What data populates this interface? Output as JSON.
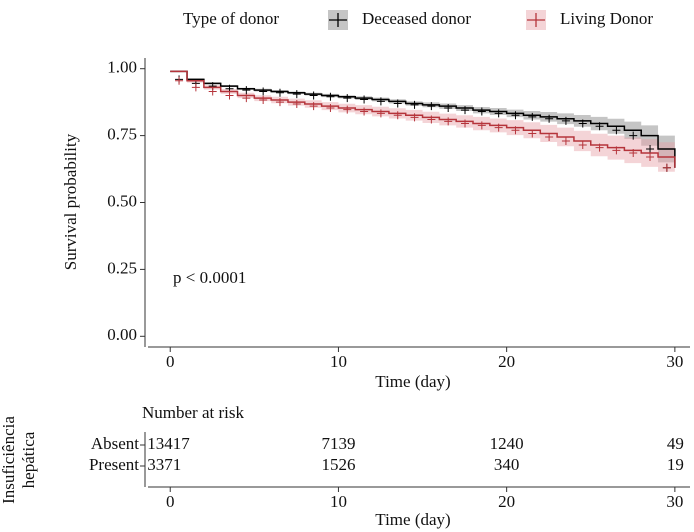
{
  "chart_data": [
    {
      "type": "step",
      "legend_title": "Type of donor",
      "xlabel": "Time (day)",
      "ylabel": "Survival probability",
      "annotation": "p < 0.0001",
      "x": [
        0,
        1,
        2,
        3,
        4,
        5,
        6,
        7,
        8,
        9,
        10,
        11,
        12,
        13,
        14,
        15,
        16,
        17,
        18,
        19,
        20,
        21,
        22,
        23,
        24,
        25,
        26,
        27,
        28,
        29,
        30
      ],
      "xlim": [
        -1.5,
        30.9
      ],
      "xticks": [
        0,
        10,
        20,
        30
      ],
      "ylim": [
        -0.04,
        1.04
      ],
      "yticks": [
        {
          "value": 0,
          "label": "0.00"
        },
        {
          "value": 0.25,
          "label": "0.25"
        },
        {
          "value": 0.5,
          "label": "0.50"
        },
        {
          "value": 0.75,
          "label": "0.75"
        },
        {
          "value": 1,
          "label": "1.00"
        }
      ],
      "series": [
        {
          "name": "Deceased donor",
          "color": "#000000",
          "band_color": "#7f7f7f",
          "values": [
            0.99,
            0.96,
            0.945,
            0.935,
            0.925,
            0.92,
            0.915,
            0.91,
            0.905,
            0.9,
            0.895,
            0.89,
            0.885,
            0.878,
            0.87,
            0.865,
            0.86,
            0.853,
            0.845,
            0.84,
            0.833,
            0.826,
            0.82,
            0.813,
            0.805,
            0.795,
            0.785,
            0.77,
            0.75,
            0.7,
            0.63
          ],
          "lower": [
            0.99,
            0.956,
            0.941,
            0.931,
            0.921,
            0.915,
            0.91,
            0.905,
            0.9,
            0.894,
            0.889,
            0.883,
            0.878,
            0.87,
            0.862,
            0.856,
            0.85,
            0.842,
            0.833,
            0.827,
            0.819,
            0.81,
            0.802,
            0.793,
            0.783,
            0.77,
            0.757,
            0.738,
            0.712,
            0.65,
            0.57
          ],
          "upper": [
            0.99,
            0.964,
            0.949,
            0.939,
            0.929,
            0.925,
            0.92,
            0.915,
            0.91,
            0.906,
            0.901,
            0.897,
            0.892,
            0.886,
            0.878,
            0.874,
            0.87,
            0.864,
            0.857,
            0.853,
            0.847,
            0.842,
            0.838,
            0.833,
            0.827,
            0.82,
            0.813,
            0.802,
            0.788,
            0.75,
            0.69
          ]
        },
        {
          "name": "Living Donor",
          "color": "#b5343b",
          "band_color": "#e6a0a6",
          "values": [
            0.99,
            0.955,
            0.93,
            0.915,
            0.9,
            0.89,
            0.883,
            0.875,
            0.868,
            0.86,
            0.853,
            0.847,
            0.84,
            0.833,
            0.826,
            0.818,
            0.81,
            0.803,
            0.795,
            0.788,
            0.78,
            0.77,
            0.758,
            0.745,
            0.73,
            0.715,
            0.705,
            0.695,
            0.685,
            0.67,
            0.63
          ],
          "lower": [
            0.99,
            0.948,
            0.922,
            0.906,
            0.89,
            0.879,
            0.871,
            0.862,
            0.854,
            0.845,
            0.837,
            0.83,
            0.822,
            0.814,
            0.806,
            0.797,
            0.788,
            0.78,
            0.77,
            0.762,
            0.752,
            0.74,
            0.726,
            0.71,
            0.692,
            0.673,
            0.66,
            0.647,
            0.633,
            0.615,
            0.61
          ],
          "upper": [
            0.99,
            0.962,
            0.938,
            0.924,
            0.91,
            0.901,
            0.895,
            0.888,
            0.882,
            0.875,
            0.869,
            0.864,
            0.858,
            0.852,
            0.846,
            0.839,
            0.832,
            0.826,
            0.82,
            0.814,
            0.808,
            0.8,
            0.79,
            0.78,
            0.768,
            0.757,
            0.75,
            0.743,
            0.737,
            0.725,
            0.7
          ]
        }
      ]
    },
    {
      "type": "risk_table",
      "title": "Number at risk",
      "ylabel": [
        "Insuficiência",
        "hepática"
      ],
      "xlabel": "Time (day)",
      "xlim": [
        -1.5,
        30.9
      ],
      "xticks": [
        0,
        10,
        20,
        30
      ],
      "rows": [
        "Absent",
        "Present"
      ],
      "values": [
        [
          13417,
          7139,
          1240,
          49
        ],
        [
          3371,
          1526,
          340,
          19
        ]
      ]
    }
  ]
}
